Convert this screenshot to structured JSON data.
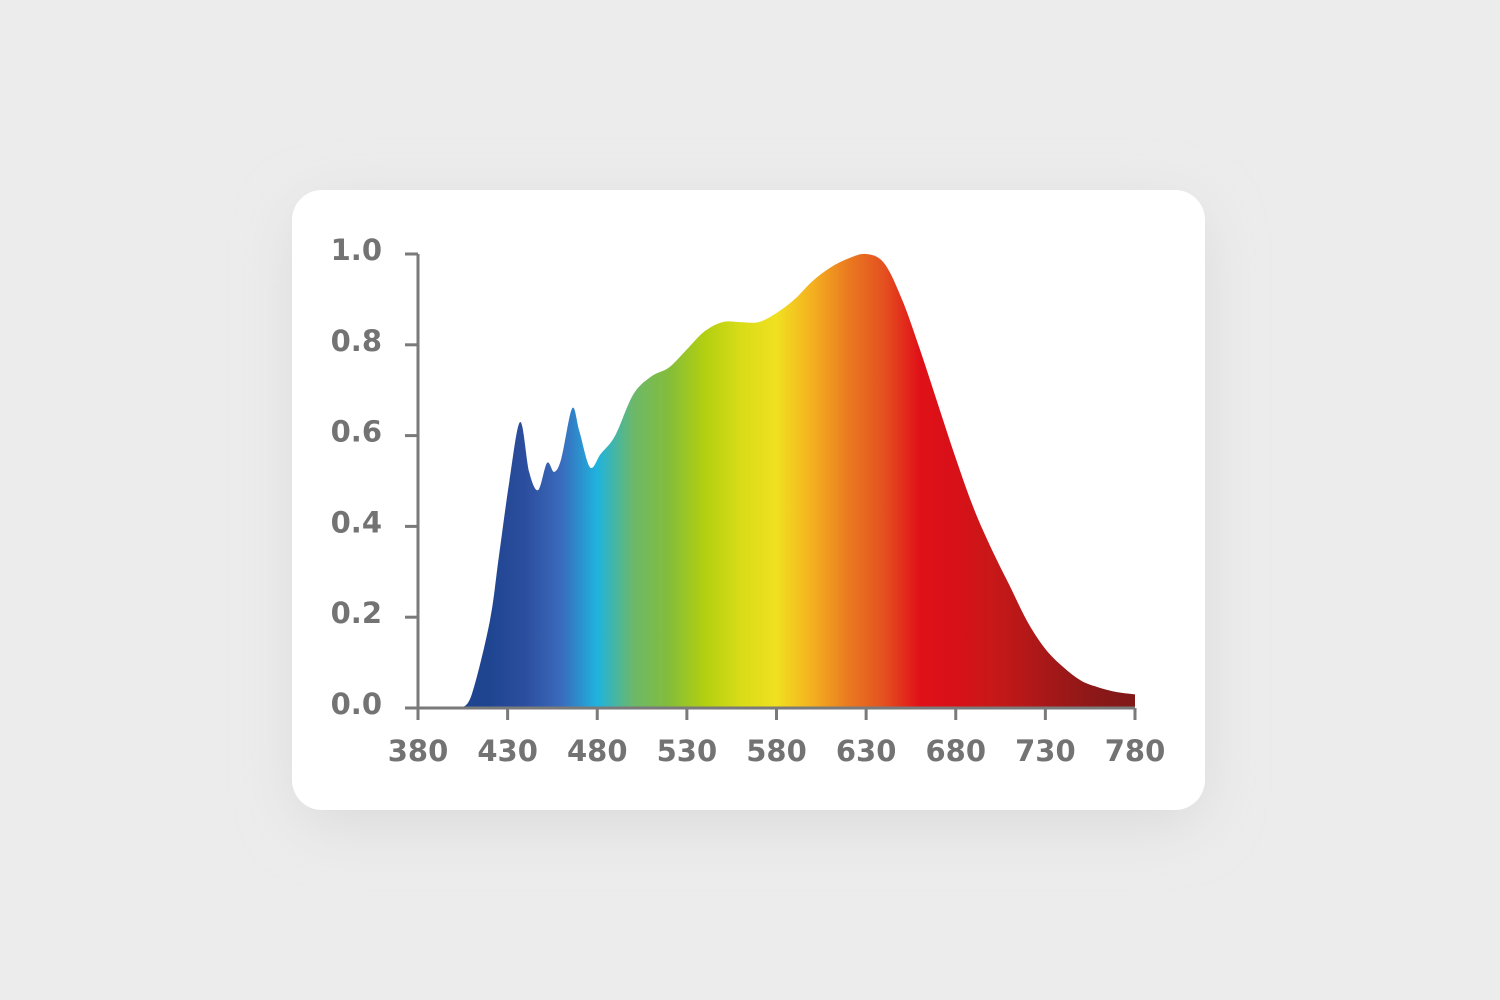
{
  "chart_data": {
    "type": "area",
    "x": [
      404,
      410,
      420,
      425,
      431,
      437,
      442,
      447,
      452,
      456,
      460,
      466,
      470,
      476,
      482,
      490,
      500,
      510,
      520,
      530,
      540,
      550,
      560,
      570,
      580,
      590,
      600,
      610,
      620,
      630,
      640,
      650,
      660,
      670,
      680,
      690,
      700,
      710,
      720,
      730,
      740,
      750,
      760,
      770,
      780
    ],
    "values": [
      0,
      0.03,
      0.19,
      0.33,
      0.5,
      0.63,
      0.52,
      0.48,
      0.54,
      0.52,
      0.55,
      0.66,
      0.61,
      0.53,
      0.56,
      0.6,
      0.69,
      0.73,
      0.75,
      0.79,
      0.83,
      0.85,
      0.85,
      0.85,
      0.87,
      0.9,
      0.94,
      0.97,
      0.99,
      1.0,
      0.98,
      0.9,
      0.79,
      0.67,
      0.55,
      0.44,
      0.35,
      0.27,
      0.19,
      0.13,
      0.09,
      0.06,
      0.045,
      0.035,
      0.03
    ],
    "colors": [
      "#1f4591",
      "#1f4591",
      "#1f4591",
      "#2d4e9e",
      "#3a6bbd",
      "#1fb3de",
      "#6cb86a",
      "#84bd3a",
      "#b3cf10",
      "#d9dc18",
      "#f0e020",
      "#f4b020",
      "#ea7a20",
      "#e45020",
      "#e01018",
      "#d81018",
      "#c81818",
      "#b41818",
      "#9c1818",
      "#8a1818",
      "#801818"
    ],
    "xlim": [
      380,
      780
    ],
    "ylim": [
      0,
      1
    ],
    "xticks": [
      380,
      430,
      480,
      530,
      580,
      630,
      680,
      730,
      780
    ],
    "yticks": [
      {
        "value": 0,
        "label": "0.0"
      },
      {
        "value": 0.2,
        "label": "0.2"
      },
      {
        "value": 0.4,
        "label": "0.4"
      },
      {
        "value": 0.6,
        "label": "0.6"
      },
      {
        "value": 0.8,
        "label": "0.8"
      },
      {
        "value": 1,
        "label": "1.0"
      }
    ]
  }
}
